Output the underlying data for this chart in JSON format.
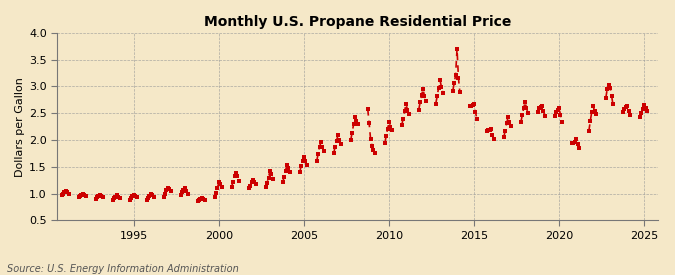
{
  "title": "Monthly U.S. Propane Residential Price",
  "ylabel": "Dollars per Gallon",
  "source": "Source: U.S. Energy Information Administration",
  "background_color": "#f5e8c8",
  "plot_background_color": "#f5e8c8",
  "line_color": "#cc0000",
  "ylim": [
    0.5,
    4.0
  ],
  "yticks": [
    0.5,
    1.0,
    1.5,
    2.0,
    2.5,
    3.0,
    3.5,
    4.0
  ],
  "xlim_start": 1990.5,
  "xlim_end": 2025.8,
  "xticks": [
    1995,
    2000,
    2005,
    2010,
    2015,
    2020,
    2025
  ],
  "seasonal_data": [
    [
      1990,
      10,
      0.98
    ],
    [
      1990,
      11,
      1.0
    ],
    [
      1990,
      12,
      1.02
    ],
    [
      1991,
      1,
      1.04
    ],
    [
      1991,
      2,
      1.02
    ],
    [
      1991,
      3,
      0.99
    ],
    [
      1991,
      10,
      0.94
    ],
    [
      1991,
      11,
      0.96
    ],
    [
      1991,
      12,
      0.98
    ],
    [
      1992,
      1,
      1.0
    ],
    [
      1992,
      2,
      0.98
    ],
    [
      1992,
      3,
      0.95
    ],
    [
      1992,
      10,
      0.9
    ],
    [
      1992,
      11,
      0.93
    ],
    [
      1992,
      12,
      0.96
    ],
    [
      1993,
      1,
      0.98
    ],
    [
      1993,
      2,
      0.96
    ],
    [
      1993,
      3,
      0.93
    ],
    [
      1993,
      10,
      0.88
    ],
    [
      1993,
      11,
      0.91
    ],
    [
      1993,
      12,
      0.94
    ],
    [
      1994,
      1,
      0.97
    ],
    [
      1994,
      2,
      0.94
    ],
    [
      1994,
      3,
      0.91
    ],
    [
      1994,
      10,
      0.88
    ],
    [
      1994,
      11,
      0.91
    ],
    [
      1994,
      12,
      0.95
    ],
    [
      1995,
      1,
      0.98
    ],
    [
      1995,
      2,
      0.96
    ],
    [
      1995,
      3,
      0.93
    ],
    [
      1995,
      10,
      0.88
    ],
    [
      1995,
      11,
      0.91
    ],
    [
      1995,
      12,
      0.95
    ],
    [
      1996,
      1,
      0.99
    ],
    [
      1996,
      2,
      0.97
    ],
    [
      1996,
      3,
      0.94
    ],
    [
      1996,
      10,
      0.93
    ],
    [
      1996,
      11,
      0.99
    ],
    [
      1996,
      12,
      1.06
    ],
    [
      1997,
      1,
      1.11
    ],
    [
      1997,
      2,
      1.08
    ],
    [
      1997,
      3,
      1.04
    ],
    [
      1997,
      10,
      0.97
    ],
    [
      1997,
      11,
      1.02
    ],
    [
      1997,
      12,
      1.07
    ],
    [
      1998,
      1,
      1.1
    ],
    [
      1998,
      2,
      1.05
    ],
    [
      1998,
      3,
      1.0
    ],
    [
      1998,
      10,
      0.86
    ],
    [
      1998,
      11,
      0.88
    ],
    [
      1998,
      12,
      0.9
    ],
    [
      1999,
      1,
      0.92
    ],
    [
      1999,
      2,
      0.9
    ],
    [
      1999,
      3,
      0.88
    ],
    [
      1999,
      10,
      0.93
    ],
    [
      1999,
      11,
      1.01
    ],
    [
      1999,
      12,
      1.11
    ],
    [
      2000,
      1,
      1.22
    ],
    [
      2000,
      2,
      1.18
    ],
    [
      2000,
      3,
      1.13
    ],
    [
      2000,
      10,
      1.13
    ],
    [
      2000,
      11,
      1.22
    ],
    [
      2000,
      12,
      1.32
    ],
    [
      2001,
      1,
      1.39
    ],
    [
      2001,
      2,
      1.32
    ],
    [
      2001,
      3,
      1.24
    ],
    [
      2001,
      10,
      1.1
    ],
    [
      2001,
      11,
      1.15
    ],
    [
      2001,
      12,
      1.21
    ],
    [
      2002,
      1,
      1.26
    ],
    [
      2002,
      2,
      1.22
    ],
    [
      2002,
      3,
      1.17
    ],
    [
      2002,
      10,
      1.13
    ],
    [
      2002,
      11,
      1.2
    ],
    [
      2002,
      12,
      1.3
    ],
    [
      2003,
      1,
      1.43
    ],
    [
      2003,
      2,
      1.36
    ],
    [
      2003,
      3,
      1.28
    ],
    [
      2003,
      10,
      1.21
    ],
    [
      2003,
      11,
      1.31
    ],
    [
      2003,
      12,
      1.43
    ],
    [
      2004,
      1,
      1.54
    ],
    [
      2004,
      2,
      1.47
    ],
    [
      2004,
      3,
      1.41
    ],
    [
      2004,
      10,
      1.4
    ],
    [
      2004,
      11,
      1.51
    ],
    [
      2004,
      12,
      1.61
    ],
    [
      2005,
      1,
      1.68
    ],
    [
      2005,
      2,
      1.6
    ],
    [
      2005,
      3,
      1.54
    ],
    [
      2005,
      10,
      1.61
    ],
    [
      2005,
      11,
      1.74
    ],
    [
      2005,
      12,
      1.87
    ],
    [
      2006,
      1,
      1.96
    ],
    [
      2006,
      2,
      1.87
    ],
    [
      2006,
      3,
      1.79
    ],
    [
      2006,
      10,
      1.76
    ],
    [
      2006,
      11,
      1.87
    ],
    [
      2006,
      12,
      1.99
    ],
    [
      2007,
      1,
      2.09
    ],
    [
      2007,
      2,
      2.0
    ],
    [
      2007,
      3,
      1.93
    ],
    [
      2007,
      10,
      2.0
    ],
    [
      2007,
      11,
      2.14
    ],
    [
      2007,
      12,
      2.29
    ],
    [
      2008,
      1,
      2.43
    ],
    [
      2008,
      2,
      2.35
    ],
    [
      2008,
      3,
      2.3
    ],
    [
      2008,
      10,
      2.58
    ],
    [
      2008,
      11,
      2.31
    ],
    [
      2008,
      12,
      2.02
    ],
    [
      2009,
      1,
      1.89
    ],
    [
      2009,
      2,
      1.82
    ],
    [
      2009,
      3,
      1.76
    ],
    [
      2009,
      10,
      1.94
    ],
    [
      2009,
      11,
      2.07
    ],
    [
      2009,
      12,
      2.21
    ],
    [
      2010,
      1,
      2.33
    ],
    [
      2010,
      2,
      2.25
    ],
    [
      2010,
      3,
      2.18
    ],
    [
      2010,
      10,
      2.28
    ],
    [
      2010,
      11,
      2.4
    ],
    [
      2010,
      12,
      2.54
    ],
    [
      2011,
      1,
      2.67
    ],
    [
      2011,
      2,
      2.57
    ],
    [
      2011,
      3,
      2.49
    ],
    [
      2011,
      10,
      2.57
    ],
    [
      2011,
      11,
      2.71
    ],
    [
      2011,
      12,
      2.84
    ],
    [
      2012,
      1,
      2.95
    ],
    [
      2012,
      2,
      2.83
    ],
    [
      2012,
      3,
      2.72
    ],
    [
      2012,
      10,
      2.68
    ],
    [
      2012,
      11,
      2.82
    ],
    [
      2012,
      12,
      2.98
    ],
    [
      2013,
      1,
      3.12
    ],
    [
      2013,
      2,
      2.99
    ],
    [
      2013,
      3,
      2.88
    ],
    [
      2013,
      10,
      2.92
    ],
    [
      2013,
      11,
      3.06
    ],
    [
      2013,
      12,
      3.22
    ],
    [
      2014,
      1,
      3.7
    ],
    [
      2014,
      2,
      3.16
    ],
    [
      2014,
      3,
      2.89
    ],
    [
      2014,
      10,
      2.63
    ],
    [
      2014,
      11,
      2.63
    ],
    [
      2014,
      12,
      2.66
    ],
    [
      2015,
      1,
      2.68
    ],
    [
      2015,
      2,
      2.53
    ],
    [
      2015,
      3,
      2.39
    ],
    [
      2015,
      10,
      2.17
    ],
    [
      2015,
      11,
      2.18
    ],
    [
      2015,
      12,
      2.19
    ],
    [
      2016,
      1,
      2.2
    ],
    [
      2016,
      2,
      2.1
    ],
    [
      2016,
      3,
      2.01
    ],
    [
      2016,
      10,
      2.06
    ],
    [
      2016,
      11,
      2.17
    ],
    [
      2016,
      12,
      2.31
    ],
    [
      2017,
      1,
      2.43
    ],
    [
      2017,
      2,
      2.34
    ],
    [
      2017,
      3,
      2.26
    ],
    [
      2017,
      10,
      2.33
    ],
    [
      2017,
      11,
      2.46
    ],
    [
      2017,
      12,
      2.59
    ],
    [
      2018,
      1,
      2.71
    ],
    [
      2018,
      2,
      2.6
    ],
    [
      2018,
      3,
      2.51
    ],
    [
      2018,
      10,
      2.52
    ],
    [
      2018,
      11,
      2.59
    ],
    [
      2018,
      12,
      2.62
    ],
    [
      2019,
      1,
      2.64
    ],
    [
      2019,
      2,
      2.54
    ],
    [
      2019,
      3,
      2.44
    ],
    [
      2019,
      10,
      2.44
    ],
    [
      2019,
      11,
      2.52
    ],
    [
      2019,
      12,
      2.57
    ],
    [
      2020,
      1,
      2.59
    ],
    [
      2020,
      2,
      2.47
    ],
    [
      2020,
      3,
      2.34
    ],
    [
      2020,
      10,
      1.95
    ],
    [
      2020,
      11,
      1.94
    ],
    [
      2020,
      12,
      1.96
    ],
    [
      2021,
      1,
      2.01
    ],
    [
      2021,
      2,
      1.93
    ],
    [
      2021,
      3,
      1.86
    ],
    [
      2021,
      10,
      2.17
    ],
    [
      2021,
      11,
      2.35
    ],
    [
      2021,
      12,
      2.52
    ],
    [
      2022,
      1,
      2.63
    ],
    [
      2022,
      2,
      2.55
    ],
    [
      2022,
      3,
      2.49
    ],
    [
      2022,
      10,
      2.79
    ],
    [
      2022,
      11,
      2.96
    ],
    [
      2022,
      12,
      3.02
    ],
    [
      2023,
      1,
      2.98
    ],
    [
      2023,
      2,
      2.83
    ],
    [
      2023,
      3,
      2.67
    ],
    [
      2023,
      10,
      2.53
    ],
    [
      2023,
      11,
      2.58
    ],
    [
      2023,
      12,
      2.62
    ],
    [
      2024,
      1,
      2.64
    ],
    [
      2024,
      2,
      2.55
    ],
    [
      2024,
      3,
      2.47
    ],
    [
      2024,
      10,
      2.43
    ],
    [
      2024,
      11,
      2.5
    ],
    [
      2024,
      12,
      2.58
    ],
    [
      2025,
      1,
      2.65
    ],
    [
      2025,
      2,
      2.6
    ],
    [
      2025,
      3,
      2.55
    ]
  ]
}
